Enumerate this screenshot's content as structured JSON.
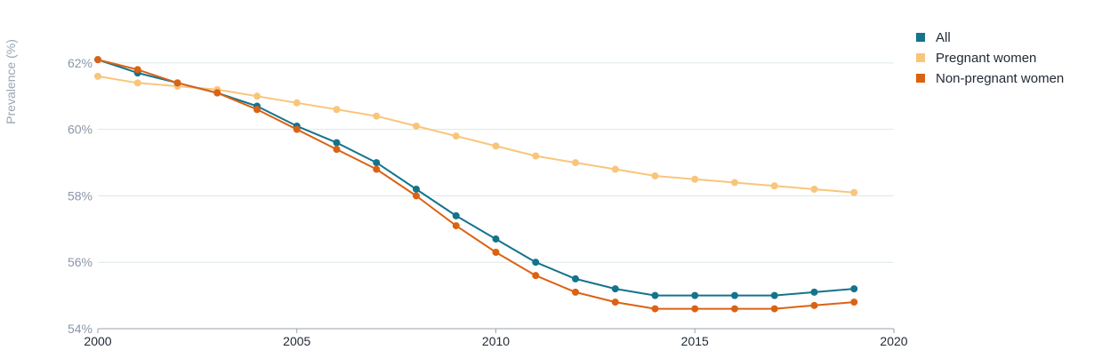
{
  "chart_data": {
    "type": "line",
    "title": "",
    "xlabel": "",
    "ylabel": "Prevalence (%)",
    "xlim": [
      2000,
      2020
    ],
    "ylim": [
      54,
      62.8
    ],
    "x_ticks": [
      2000,
      2005,
      2010,
      2015,
      2020
    ],
    "y_ticks": [
      54,
      56,
      58,
      60,
      62
    ],
    "y_tick_labels": [
      "54%",
      "56%",
      "58%",
      "60%",
      "62%"
    ],
    "grid": "horizontal",
    "legend_position": "top-right",
    "x": [
      2000,
      2001,
      2002,
      2003,
      2004,
      2005,
      2006,
      2007,
      2008,
      2009,
      2010,
      2011,
      2012,
      2013,
      2014,
      2015,
      2016,
      2017,
      2018,
      2019
    ],
    "series": [
      {
        "name": "All",
        "color": "#13748c",
        "values": [
          62.1,
          61.7,
          61.4,
          61.1,
          60.7,
          60.1,
          59.6,
          59.0,
          58.2,
          57.4,
          56.7,
          56.0,
          55.5,
          55.2,
          55.0,
          55.0,
          55.0,
          55.0,
          55.1,
          55.2
        ]
      },
      {
        "name": "Pregnant women",
        "color": "#f9c57b",
        "values": [
          61.6,
          61.4,
          61.3,
          61.2,
          61.0,
          60.8,
          60.6,
          60.4,
          60.1,
          59.8,
          59.5,
          59.2,
          59.0,
          58.8,
          58.6,
          58.5,
          58.4,
          58.3,
          58.2,
          58.1
        ]
      },
      {
        "name": "Non-pregnant women",
        "color": "#dc6213",
        "values": [
          62.1,
          61.8,
          61.4,
          61.1,
          60.6,
          60.0,
          59.4,
          58.8,
          58.0,
          57.1,
          56.3,
          55.6,
          55.1,
          54.8,
          54.6,
          54.6,
          54.6,
          54.6,
          54.7,
          54.8
        ]
      }
    ]
  }
}
